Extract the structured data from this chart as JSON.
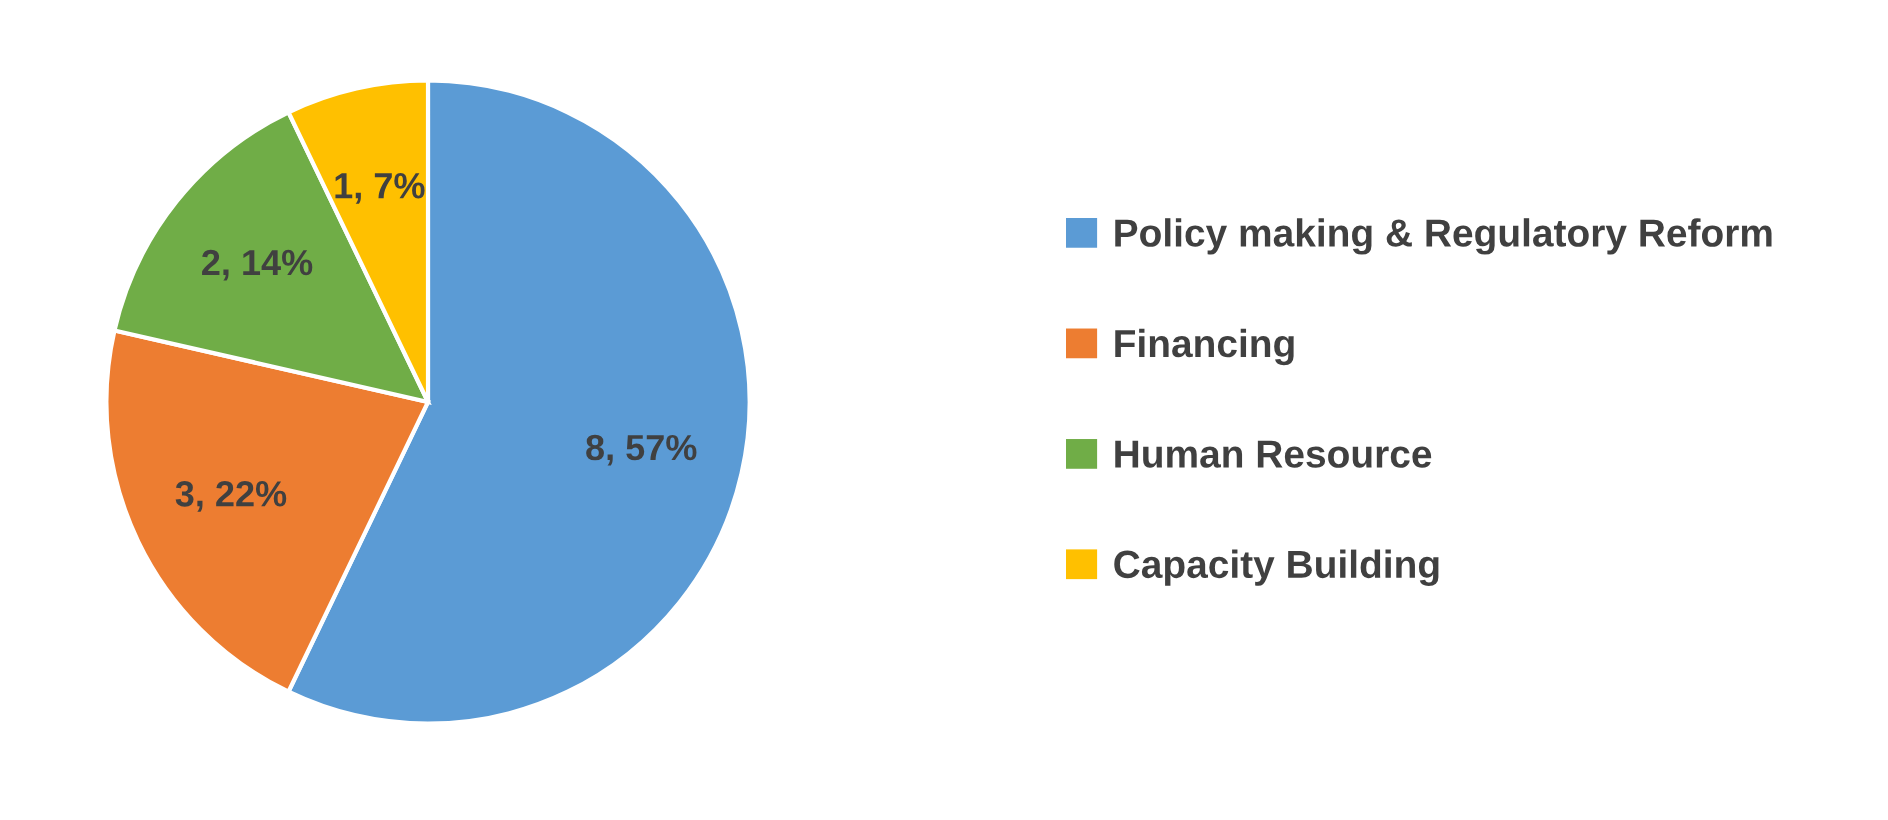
{
  "chart_data": {
    "type": "pie",
    "categories": [
      "Policy making & Regulatory Reform",
      "Financing",
      "Human Resource",
      "Capacity Building"
    ],
    "values": [
      8,
      3,
      2,
      1
    ],
    "value_labels": [
      "8, 57%",
      "3, 22%",
      "2, 14%",
      "1, 7%"
    ],
    "colors": [
      "#5b9bd5",
      "#ed7d31",
      "#70ad47",
      "#ffc000"
    ],
    "legend": "right"
  }
}
